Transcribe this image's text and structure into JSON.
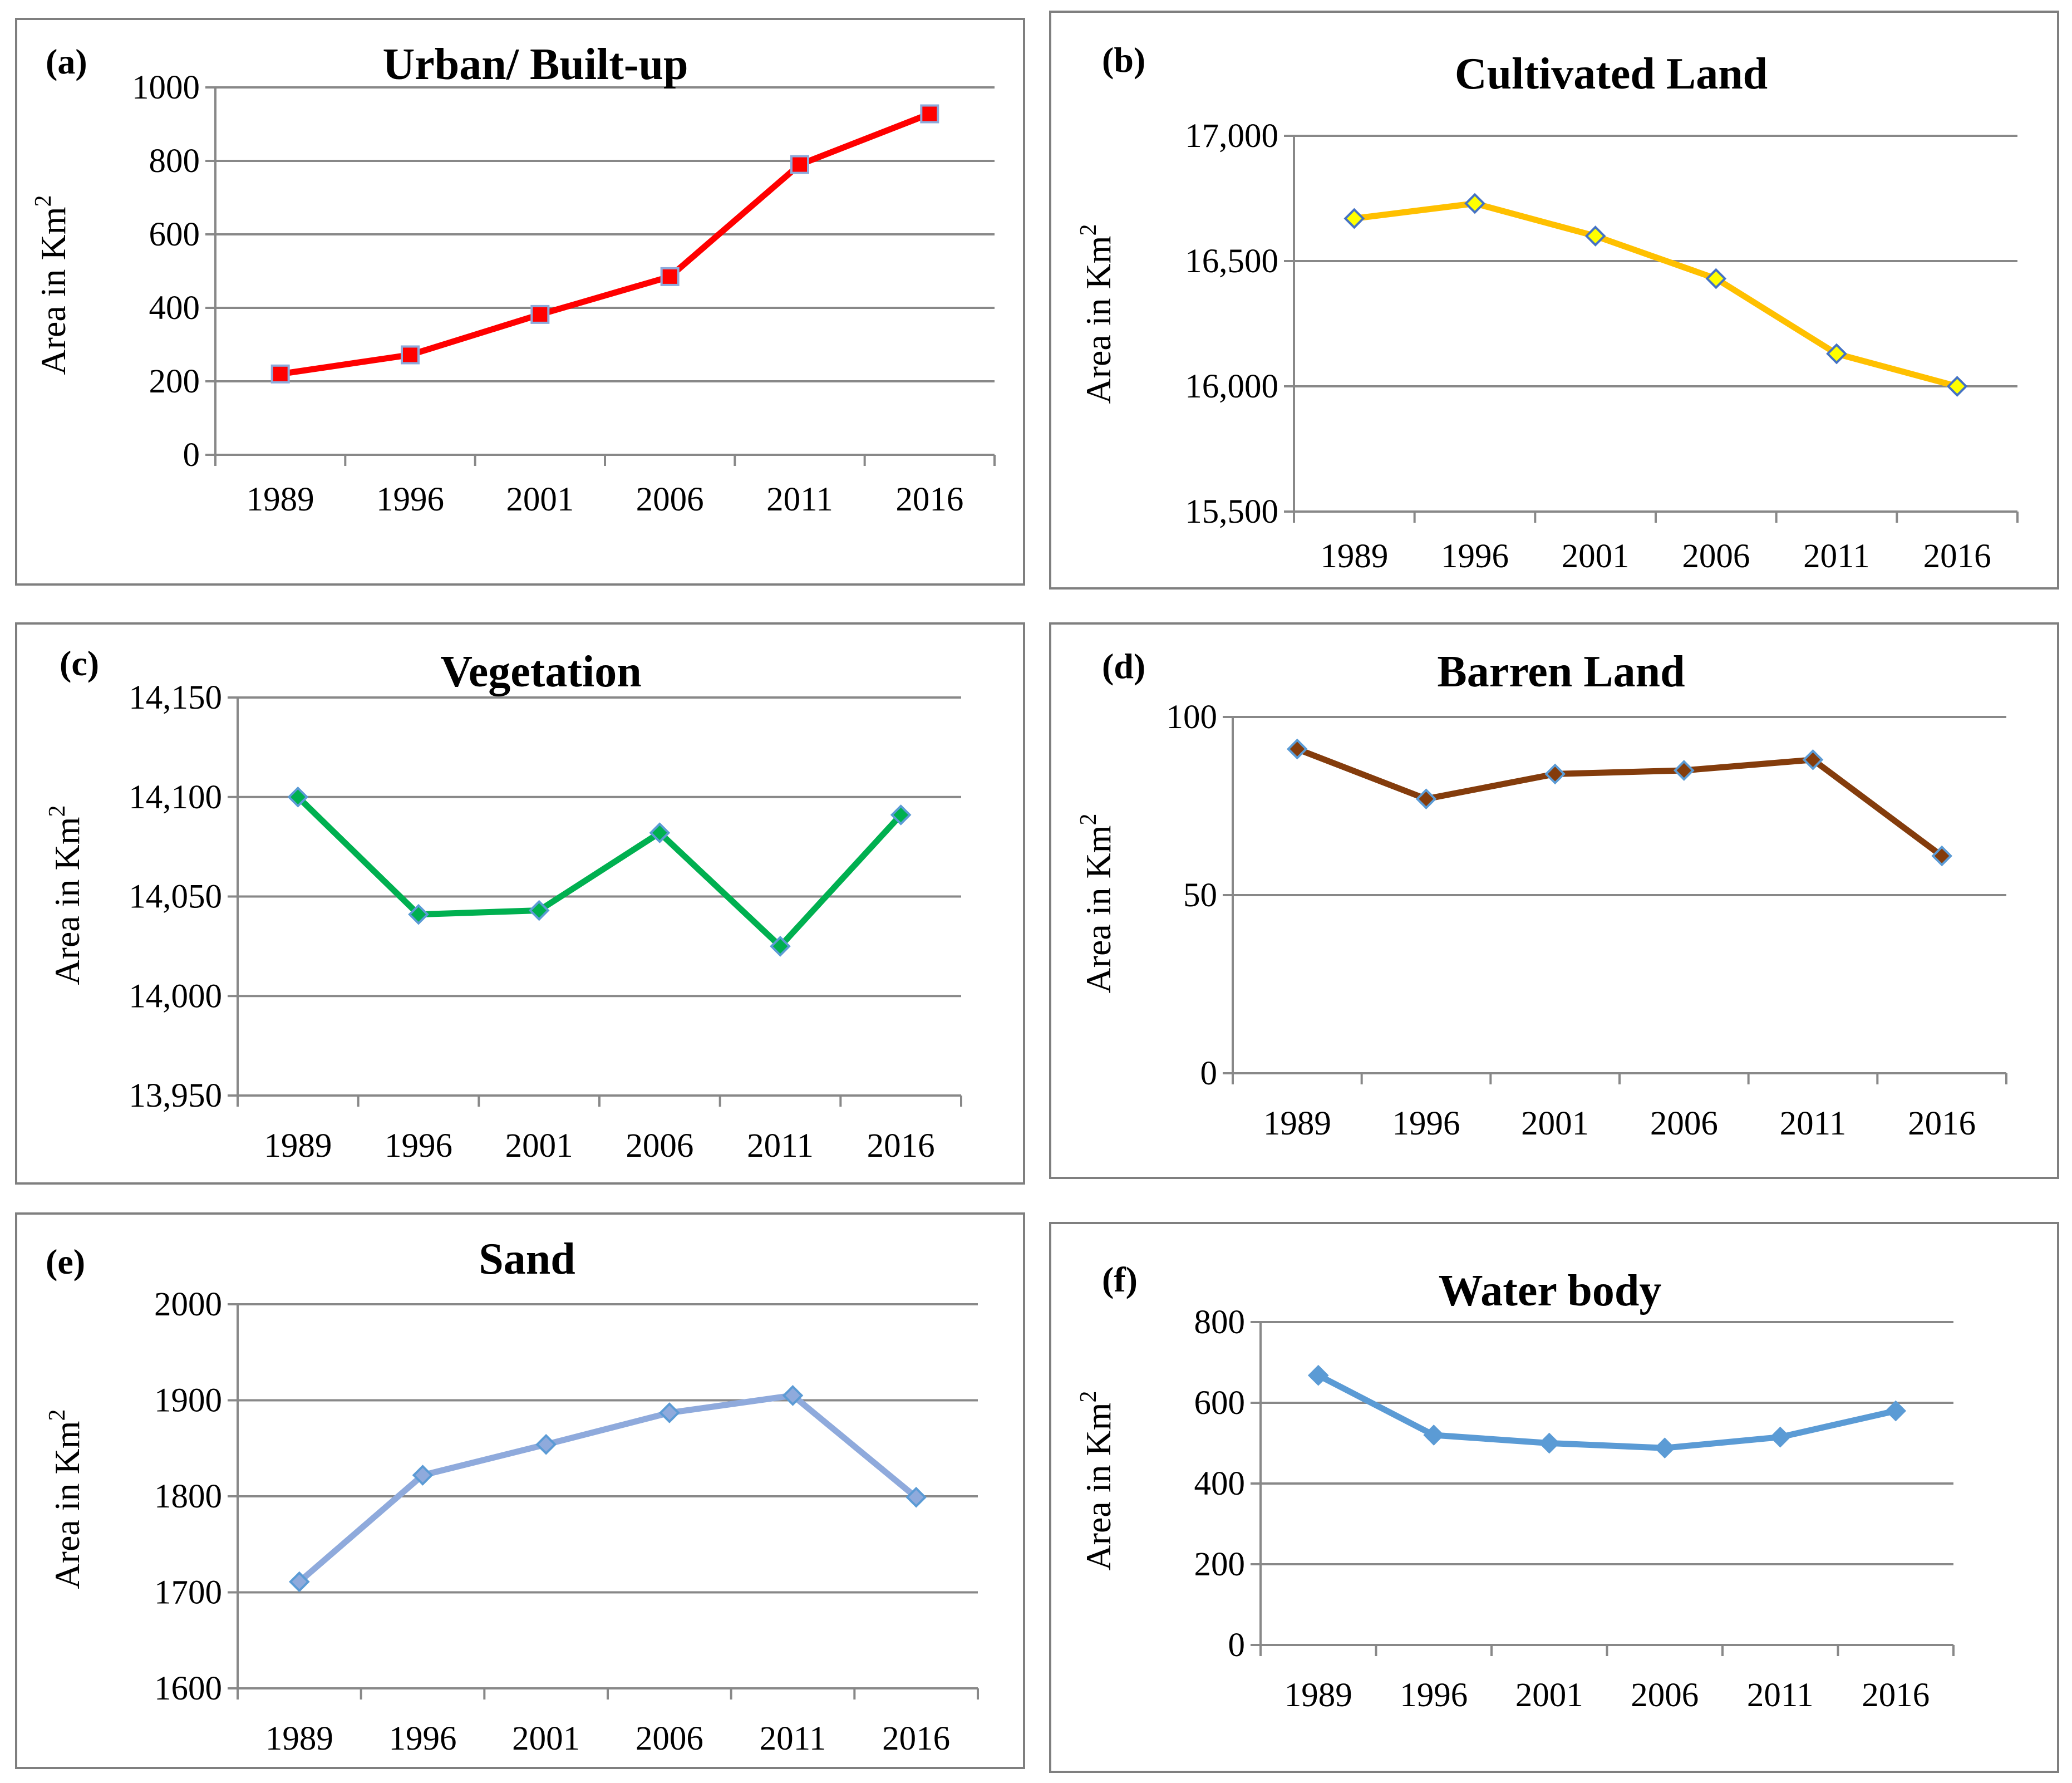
{
  "chart_data": [
    {
      "type": "line",
      "panel_label": "(a)",
      "title": "Urban/ Built-up",
      "ylabel": "Area in Km",
      "ylabel_sup": "2",
      "categories": [
        "1989",
        "1996",
        "2001",
        "2006",
        "2011",
        "2016"
      ],
      "values": [
        220,
        272,
        382,
        485,
        790,
        928
      ],
      "ylim": [
        0,
        1000
      ],
      "yticks": [
        "0",
        "200",
        "400",
        "600",
        "800",
        "1000"
      ],
      "line_color": "#ff0000",
      "marker": "square",
      "marker_fill": "#ff0000",
      "marker_stroke": "#8eaadb",
      "grid": true
    },
    {
      "type": "line",
      "panel_label": "(b)",
      "title": "Cultivated Land",
      "ylabel": "Area in Km",
      "ylabel_sup": "2",
      "categories": [
        "1989",
        "1996",
        "2001",
        "2006",
        "2011",
        "2016"
      ],
      "values": [
        16670,
        16730,
        16600,
        16430,
        16130,
        16000
      ],
      "ylim": [
        15500,
        17000
      ],
      "yticks": [
        "15,500",
        "16,000",
        "16,500",
        "17,000"
      ],
      "line_color": "#ffc000",
      "marker": "diamond",
      "marker_fill": "#ffff00",
      "marker_stroke": "#4472c4",
      "grid": true
    },
    {
      "type": "line",
      "panel_label": "(c)",
      "title": "Vegetation",
      "ylabel": "Area in Km",
      "ylabel_sup": "2",
      "categories": [
        "1989",
        "1996",
        "2001",
        "2006",
        "2011",
        "2016"
      ],
      "values": [
        14100,
        14041,
        14043,
        14082,
        14025,
        14091
      ],
      "ylim": [
        13950,
        14150
      ],
      "yticks": [
        "13,950",
        "14,000",
        "14,050",
        "14,100",
        "14,150"
      ],
      "line_color": "#00b050",
      "marker": "diamond",
      "marker_fill": "#00b050",
      "marker_stroke": "#5b9bd5",
      "grid": true
    },
    {
      "type": "line",
      "panel_label": "(d)",
      "title": "Barren Land",
      "ylabel": "Area in Km",
      "ylabel_sup": "2",
      "categories": [
        "1989",
        "1996",
        "2001",
        "2006",
        "2011",
        "2016"
      ],
      "values": [
        91,
        77,
        84,
        85,
        88,
        61
      ],
      "ylim": [
        0,
        100
      ],
      "yticks": [
        "0",
        "50",
        "100"
      ],
      "line_color": "#843c0c",
      "marker": "diamond",
      "marker_fill": "#843c0c",
      "marker_stroke": "#5b9bd5",
      "grid": true
    },
    {
      "type": "line",
      "panel_label": "(e)",
      "title": "Sand",
      "ylabel": "Area in Km",
      "ylabel_sup": "2",
      "categories": [
        "1989",
        "1996",
        "2001",
        "2006",
        "2011",
        "2016"
      ],
      "values": [
        1711,
        1822,
        1854,
        1887,
        1905,
        1799
      ],
      "ylim": [
        1600,
        2000
      ],
      "yticks": [
        "1600",
        "1700",
        "1800",
        "1900",
        "2000"
      ],
      "line_color": "#8faadc",
      "marker": "diamond",
      "marker_fill": "#8faadc",
      "marker_stroke": "#5b9bd5",
      "grid": true
    },
    {
      "type": "line",
      "panel_label": "(f)",
      "title": "Water body",
      "ylabel": "Area in Km",
      "ylabel_sup": "2",
      "categories": [
        "1989",
        "1996",
        "2001",
        "2006",
        "2011",
        "2016"
      ],
      "values": [
        668,
        520,
        500,
        488,
        515,
        580
      ],
      "ylim": [
        0,
        800
      ],
      "yticks": [
        "0",
        "200",
        "400",
        "600",
        "800"
      ],
      "line_color": "#5b9bd5",
      "marker": "diamond",
      "marker_fill": "#5b9bd5",
      "marker_stroke": "#5b9bd5",
      "grid": true
    }
  ]
}
